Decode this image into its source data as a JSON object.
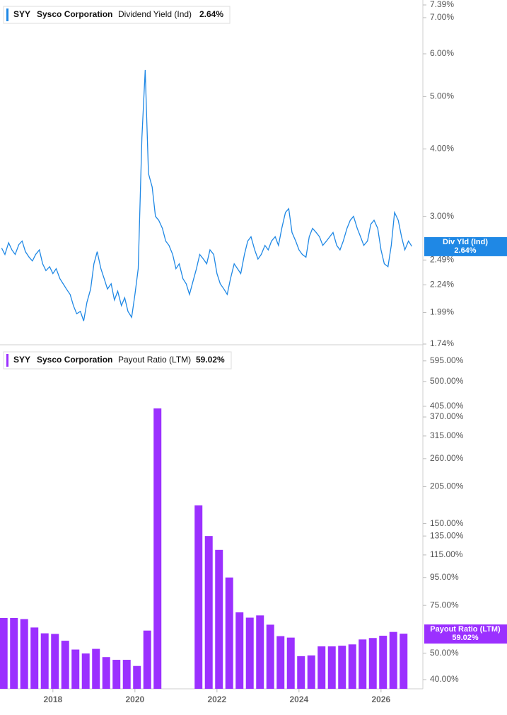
{
  "chart_data": [
    {
      "type": "line",
      "ticker": "SYY",
      "company": "Sysco Corporation",
      "title": "Dividend Yield (Ind)",
      "current_label": "2.64%",
      "tag_label": "Div Yld (Ind)",
      "color": "#1f88e5",
      "log_scale": true,
      "x": [
        2016.75,
        2016.83,
        2016.92,
        2017.0,
        2017.08,
        2017.17,
        2017.25,
        2017.33,
        2017.42,
        2017.5,
        2017.58,
        2017.67,
        2017.75,
        2017.83,
        2017.92,
        2018.0,
        2018.08,
        2018.17,
        2018.25,
        2018.33,
        2018.42,
        2018.5,
        2018.58,
        2018.67,
        2018.75,
        2018.83,
        2018.92,
        2019.0,
        2019.08,
        2019.17,
        2019.25,
        2019.33,
        2019.42,
        2019.5,
        2019.58,
        2019.67,
        2019.75,
        2019.83,
        2019.92,
        2020.0,
        2020.08,
        2020.17,
        2020.25,
        2020.33,
        2020.42,
        2020.5,
        2020.58,
        2020.67,
        2020.75,
        2020.83,
        2020.92,
        2021.0,
        2021.08,
        2021.17,
        2021.25,
        2021.33,
        2021.42,
        2021.5,
        2021.58,
        2021.67,
        2021.75,
        2021.83,
        2021.92,
        2022.0,
        2022.08,
        2022.17,
        2022.25,
        2022.33,
        2022.42,
        2022.5,
        2022.58,
        2022.67,
        2022.75,
        2022.83,
        2022.92,
        2023.0,
        2023.08,
        2023.17,
        2023.25,
        2023.33,
        2023.42,
        2023.5,
        2023.58,
        2023.67,
        2023.75,
        2023.83,
        2023.92,
        2024.0,
        2024.08,
        2024.17,
        2024.25,
        2024.33,
        2024.42,
        2024.5,
        2024.58,
        2024.67,
        2024.75,
        2024.83,
        2024.92,
        2025.0,
        2025.08,
        2025.17,
        2025.25,
        2025.33,
        2025.42,
        2025.5,
        2025.58,
        2025.67,
        2025.75,
        2025.83,
        2025.92,
        2026.0,
        2026.08,
        2026.17,
        2026.25,
        2026.33,
        2026.42,
        2026.5,
        2026.58,
        2026.67,
        2026.75
      ],
      "values": [
        2.62,
        2.55,
        2.68,
        2.6,
        2.55,
        2.66,
        2.7,
        2.58,
        2.52,
        2.48,
        2.55,
        2.6,
        2.45,
        2.38,
        2.42,
        2.35,
        2.4,
        2.3,
        2.25,
        2.2,
        2.15,
        2.05,
        1.98,
        2.0,
        1.92,
        2.08,
        2.2,
        2.45,
        2.58,
        2.4,
        2.3,
        2.2,
        2.25,
        2.1,
        2.18,
        2.05,
        2.12,
        2.0,
        1.95,
        2.15,
        2.4,
        4.2,
        5.6,
        3.6,
        3.4,
        3.0,
        2.95,
        2.85,
        2.7,
        2.65,
        2.55,
        2.4,
        2.45,
        2.3,
        2.25,
        2.15,
        2.28,
        2.4,
        2.55,
        2.5,
        2.45,
        2.6,
        2.55,
        2.35,
        2.25,
        2.2,
        2.15,
        2.3,
        2.45,
        2.4,
        2.35,
        2.55,
        2.7,
        2.75,
        2.6,
        2.5,
        2.55,
        2.65,
        2.6,
        2.7,
        2.75,
        2.65,
        2.85,
        3.05,
        3.1,
        2.8,
        2.7,
        2.6,
        2.55,
        2.52,
        2.75,
        2.85,
        2.8,
        2.75,
        2.65,
        2.7,
        2.75,
        2.8,
        2.65,
        2.6,
        2.7,
        2.85,
        2.95,
        3.0,
        2.85,
        2.75,
        2.65,
        2.7,
        2.9,
        2.95,
        2.85,
        2.6,
        2.45,
        2.42,
        2.65,
        3.05,
        2.95,
        2.75,
        2.6,
        2.7,
        2.64
      ],
      "xlim": [
        2016.71,
        2027.02
      ],
      "ylim": [
        1.74,
        7.39
      ],
      "yticks": [
        {
          "value": 1.74,
          "label": "1.74%"
        },
        {
          "value": 1.99,
          "label": "1.99%"
        },
        {
          "value": 2.24,
          "label": "2.24%"
        },
        {
          "value": 2.49,
          "label": "2.49%"
        },
        {
          "value": 3.0,
          "label": "3.00%"
        },
        {
          "value": 4.0,
          "label": "4.00%"
        },
        {
          "value": 5.0,
          "label": "5.00%"
        },
        {
          "value": 6.0,
          "label": "6.00%"
        },
        {
          "value": 7.0,
          "label": "7.00%"
        },
        {
          "value": 7.39,
          "label": "7.39%"
        }
      ]
    },
    {
      "type": "bar",
      "ticker": "SYY",
      "company": "Sysco Corporation",
      "title": "Payout Ratio (LTM)",
      "current_label": "59.02%",
      "color": "#9b30ff",
      "log_scale": true,
      "x": [
        2016.8,
        2017.05,
        2017.3,
        2017.55,
        2017.8,
        2018.05,
        2018.3,
        2018.55,
        2018.8,
        2019.05,
        2019.3,
        2019.55,
        2019.8,
        2020.05,
        2020.3,
        2020.55,
        2020.8,
        2021.05,
        2021.3,
        2021.55,
        2021.8,
        2022.05,
        2022.3,
        2022.55,
        2022.8,
        2023.05,
        2023.3,
        2023.55,
        2023.8,
        2024.05,
        2024.3,
        2024.55,
        2024.8,
        2025.05,
        2025.3,
        2025.55,
        2025.8,
        2026.05,
        2026.3,
        2026.55
      ],
      "values": [
        67.4,
        67.4,
        66.8,
        62.2,
        59.2,
        58.9,
        55.6,
        51.6,
        49.9,
        51.9,
        48.4,
        47.3,
        47.3,
        44.9,
        60.6,
        398,
        null,
        null,
        null,
        175,
        135,
        120,
        95,
        70.7,
        67.6,
        68.9,
        63.7,
        57.8,
        57.1,
        48.8,
        49.1,
        53.0,
        53.0,
        53.3,
        53.9,
        56.2,
        56.9,
        58.0,
        59.9,
        59.02
      ],
      "xlim": [
        2016.71,
        2027.02
      ],
      "xticks": [
        2018,
        2020,
        2022,
        2024,
        2026
      ],
      "ylim": [
        37,
        670
      ],
      "yticks": [
        {
          "value": 40,
          "label": "40.00%"
        },
        {
          "value": 50,
          "label": "50.00%"
        },
        {
          "value": 75,
          "label": "75.00%"
        },
        {
          "value": 95,
          "label": "95.00%"
        },
        {
          "value": 115,
          "label": "115.00%"
        },
        {
          "value": 135,
          "label": "135.00%"
        },
        {
          "value": 150,
          "label": "150.00%"
        },
        {
          "value": 205,
          "label": "205.00%"
        },
        {
          "value": 260,
          "label": "260.00%"
        },
        {
          "value": 315,
          "label": "315.00%"
        },
        {
          "value": 370,
          "label": "370.00%"
        },
        {
          "value": 405,
          "label": "405.00%"
        },
        {
          "value": 500,
          "label": "500.00%"
        },
        {
          "value": 595,
          "label": "595.00%"
        }
      ]
    }
  ]
}
